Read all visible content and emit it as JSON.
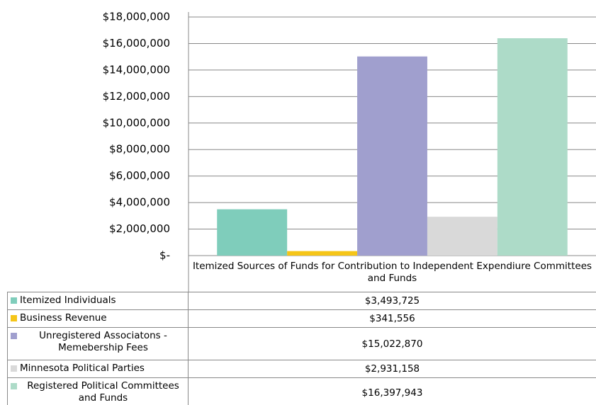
{
  "chart_data": {
    "type": "bar",
    "categories": [
      "Itemized Sources of Funds for Contribution to Independent Expendiure Committees and Funds"
    ],
    "series": [
      {
        "name": "Itemized Individuals",
        "color": "#7fcdbb",
        "values": [
          3493725
        ],
        "value_labels": [
          "$3,493,725"
        ]
      },
      {
        "name": "Business Revenue",
        "color": "#f5c518",
        "values": [
          341556
        ],
        "value_labels": [
          "$341,556"
        ]
      },
      {
        "name": "Unregistered Associatons - Memebership Fees",
        "color": "#a09fce",
        "values": [
          15022870
        ],
        "value_labels": [
          "$15,022,870"
        ]
      },
      {
        "name": "Minnesota Political Parties",
        "color": "#d9d9d9",
        "values": [
          2931158
        ],
        "value_labels": [
          "$2,931,158"
        ]
      },
      {
        "name": "Registered Political Committees and Funds",
        "color": "#addbc8",
        "values": [
          16397943
        ],
        "value_labels": [
          "$16,397,943"
        ]
      }
    ],
    "ylim": [
      0,
      18000000
    ],
    "yticks": [
      {
        "value": 0,
        "label": "$-"
      },
      {
        "value": 2000000,
        "label": "$2,000,000"
      },
      {
        "value": 4000000,
        "label": "$4,000,000"
      },
      {
        "value": 6000000,
        "label": "$6,000,000"
      },
      {
        "value": 8000000,
        "label": "$8,000,000"
      },
      {
        "value": 10000000,
        "label": "$10,000,000"
      },
      {
        "value": 12000000,
        "label": "$12,000,000"
      },
      {
        "value": 14000000,
        "label": "$14,000,000"
      },
      {
        "value": 16000000,
        "label": "$16,000,000"
      },
      {
        "value": 18000000,
        "label": "$18,000,000"
      }
    ],
    "grid": true
  }
}
